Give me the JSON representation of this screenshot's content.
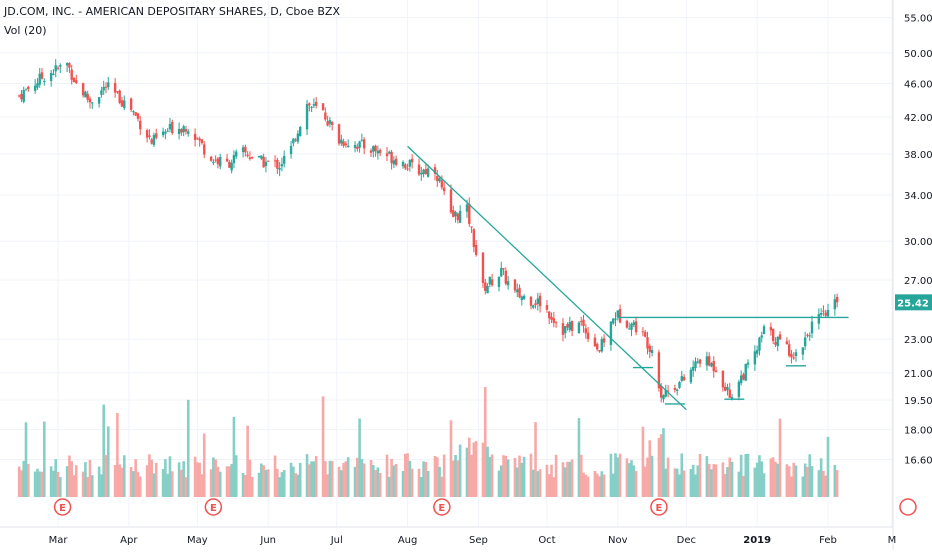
{
  "header": {
    "title": "JD.COM, INC. - AMERICAN DEPOSITARY SHARES, D, Cboe BZX",
    "volume_label": "Vol (20)"
  },
  "chart_data": {
    "type": "candlestick",
    "title": "JD.COM, INC. - AMERICAN DEPOSITARY SHARES, D, Cboe BZX",
    "price_axis": {
      "ticks": [
        "55.00",
        "50.00",
        "46.00",
        "42.00",
        "38.00",
        "34.00",
        "30.00",
        "27.00",
        "23.00",
        "21.00",
        "19.50",
        "18.00",
        "16.60"
      ],
      "scale": "log",
      "range": [
        15.2,
        56.0
      ]
    },
    "last_price": "25.42",
    "time_axis": {
      "ticks": [
        "Mar",
        "Apr",
        "May",
        "Jun",
        "Jul",
        "Aug",
        "Sep",
        "Oct",
        "Nov",
        "Dec",
        "2019",
        "Feb",
        "M"
      ]
    },
    "earnings_markers": [
      "E",
      "E",
      "E",
      "E",
      "E"
    ],
    "anchors": [
      [
        "2018-02-12",
        44.5
      ],
      [
        "2018-02-23",
        47.0
      ],
      [
        "2018-03-05",
        48.5
      ],
      [
        "2018-03-09",
        46.0
      ],
      [
        "2018-03-15",
        43.8
      ],
      [
        "2018-03-22",
        45.6
      ],
      [
        "2018-04-02",
        43.0
      ],
      [
        "2018-04-11",
        39.2
      ],
      [
        "2018-04-20",
        40.8
      ],
      [
        "2018-04-27",
        41.0
      ],
      [
        "2018-05-07",
        37.5
      ],
      [
        "2018-05-14",
        37.0
      ],
      [
        "2018-05-21",
        38.2
      ],
      [
        "2018-05-29",
        37.2
      ],
      [
        "2018-06-06",
        36.9
      ],
      [
        "2018-06-11",
        38.5
      ],
      [
        "2018-06-18",
        43.5
      ],
      [
        "2018-06-25",
        42.5
      ],
      [
        "2018-07-02",
        39.5
      ],
      [
        "2018-07-16",
        38.6
      ],
      [
        "2018-07-27",
        37.5
      ],
      [
        "2018-08-06",
        36.3
      ],
      [
        "2018-08-13",
        36.5
      ],
      [
        "2018-08-20",
        32.0
      ],
      [
        "2018-08-27",
        32.6
      ],
      [
        "2018-09-03",
        26.4
      ],
      [
        "2018-09-11",
        27.6
      ],
      [
        "2018-09-17",
        26.0
      ],
      [
        "2018-09-28",
        25.4
      ],
      [
        "2018-10-08",
        23.6
      ],
      [
        "2018-10-16",
        24.0
      ],
      [
        "2018-10-24",
        22.3
      ],
      [
        "2018-10-31",
        24.6
      ],
      [
        "2018-11-09",
        23.8
      ],
      [
        "2018-11-16",
        22.4
      ],
      [
        "2018-11-20",
        19.8
      ],
      [
        "2018-11-30",
        20.6
      ],
      [
        "2018-12-07",
        21.8
      ],
      [
        "2018-12-14",
        21.3
      ],
      [
        "2018-12-20",
        19.7
      ],
      [
        "2018-12-31",
        22.0
      ],
      [
        "2019-01-04",
        23.6
      ],
      [
        "2019-01-11",
        22.8
      ],
      [
        "2019-01-18",
        22.0
      ],
      [
        "2019-01-25",
        23.9
      ],
      [
        "2019-01-31",
        24.6
      ],
      [
        "2019-02-05",
        25.42
      ]
    ],
    "trendlines": [
      {
        "name": "downtrend",
        "from": [
          "2018-08-01",
          38.8
        ],
        "to": [
          "2018-12-01",
          19.0
        ]
      },
      {
        "name": "neckline",
        "from": [
          "2018-11-01",
          24.4
        ],
        "to": [
          "2019-02-10",
          24.4
        ]
      }
    ],
    "shoulder_marks": [
      [
        "2018-11-12",
        21.3
      ],
      [
        "2018-11-26",
        19.3
      ],
      [
        "2018-12-22",
        19.55
      ],
      [
        "2019-01-18",
        21.4
      ]
    ],
    "colors": {
      "up": "#26a69a",
      "down": "#ef5350",
      "up_vol": "#86cfc6",
      "down_vol": "#f7a9a7",
      "line": "#26a69a",
      "axis_text": "#131722",
      "grid": "#f0f3fa",
      "price_tag": "#26a69a"
    }
  }
}
